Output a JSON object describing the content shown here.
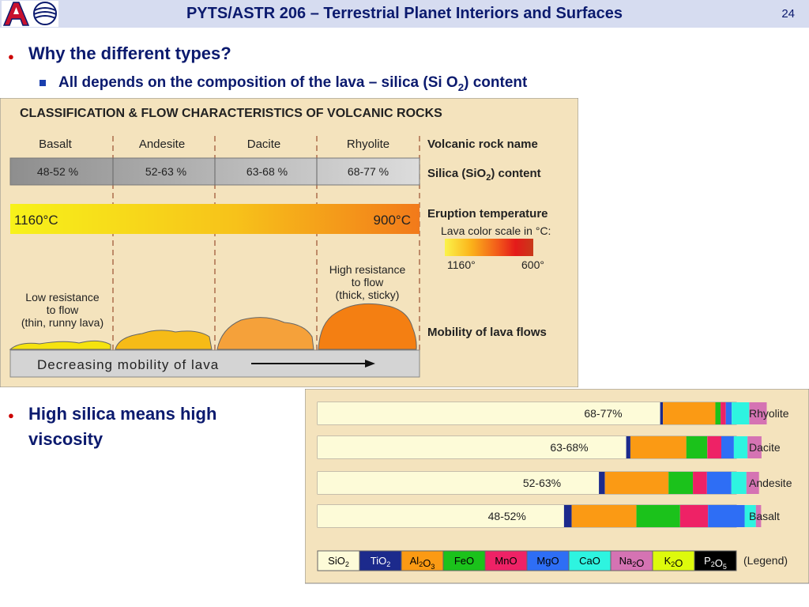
{
  "header": {
    "title": "PYTS/ASTR 206 – Terrestrial Planet Interiors and Surfaces",
    "page_number": "24"
  },
  "bullets": [
    {
      "text": "Why the different types?"
    },
    {
      "text_pre": "All depends on the composition of the lava – silica (Si O",
      "sub": "2",
      "text_post": ") content"
    },
    {
      "line1": "High silica means high",
      "line2": "viscosity"
    }
  ],
  "figure1": {
    "title": "CLASSIFICATION & FLOW CHARACTERISTICS OF VOLCANIC ROCKS",
    "rocks": [
      "Basalt",
      "Andesite",
      "Dacite",
      "Rhyolite"
    ],
    "silica_ranges": [
      "48-52 %",
      "52-63 %",
      "63-68 %",
      "68-77 %"
    ],
    "temp_left": "1160°C",
    "temp_right": "900°C",
    "label_rock_name": "Volcanic rock name",
    "label_silica_pre": "Silica (SiO",
    "label_silica_sub": "2",
    "label_silica_post": ") content",
    "label_eruption": "Eruption temperature",
    "label_scale": "Lava color scale in °C:",
    "scale_min": "1160°",
    "scale_max": "600°",
    "high_res": [
      "High resistance",
      "to flow",
      "(thick, sticky)"
    ],
    "low_res": [
      "Low resistance",
      "to flow",
      "(thin, runny lava)"
    ],
    "label_mobility": "Mobility of lava flows",
    "decreasing": "Decreasing mobility of lava",
    "colors": {
      "bg": "#f4e3bd",
      "basalt": "#f5e30f",
      "andesite": "#f6bb17",
      "dacite": "#f5a13a",
      "rhyolite": "#f47f12"
    }
  },
  "figure2": {
    "rows": [
      {
        "label": "Rhyolite",
        "pct": "68-77%",
        "parts": [
          98,
          0.8,
          15,
          1.5,
          1.5,
          1.7,
          5,
          5
        ]
      },
      {
        "label": "Dacite",
        "pct": "63-68%",
        "parts": [
          88.3,
          1.2,
          16,
          6,
          4,
          3.6,
          3.9,
          4
        ]
      },
      {
        "label": "Andesite",
        "pct": "52-63%",
        "parts": [
          80.5,
          1.7,
          18.2,
          7,
          4,
          7,
          4.3,
          3.6
        ]
      },
      {
        "label": "Basalt",
        "pct": "48-52%",
        "parts": [
          70.5,
          2.2,
          18.5,
          12.5,
          8,
          10.5,
          3.2,
          1.5
        ]
      }
    ],
    "legend": [
      {
        "pre": "SiO",
        "sub": "2",
        "post": "",
        "color": "#fdfbd8",
        "text_color": "#000000"
      },
      {
        "pre": "TiO",
        "sub": "2",
        "post": "",
        "color": "#1c2a8c",
        "text_color": "#ffffff"
      },
      {
        "pre": "Al",
        "sub": "2",
        "post": "O",
        "sub2": "3",
        "color": "#fb9a14",
        "text_color": "#000000"
      },
      {
        "pre": "FeO",
        "sub": "",
        "post": "",
        "color": "#1bc21b",
        "text_color": "#000000"
      },
      {
        "pre": "MnO",
        "sub": "",
        "post": "",
        "color": "#ee2266",
        "text_color": "#000000"
      },
      {
        "pre": "MgO",
        "sub": "",
        "post": "",
        "color": "#2e6ef5",
        "text_color": "#000000"
      },
      {
        "pre": "CaO",
        "sub": "",
        "post": "",
        "color": "#2ef4e0",
        "text_color": "#000000"
      },
      {
        "pre": "Na",
        "sub": "2",
        "post": "O",
        "color": "#d573b3",
        "text_color": "#000000"
      },
      {
        "pre": "K",
        "sub": "2",
        "post": "O",
        "color": "#ddfa0c",
        "text_color": "#000000"
      },
      {
        "pre": "P",
        "sub": "2",
        "post": "O",
        "sub2": "5",
        "color": "#000000",
        "text_color": "#ffffff"
      }
    ],
    "legend_label": "(Legend)",
    "bg": "#f4e3bd"
  }
}
